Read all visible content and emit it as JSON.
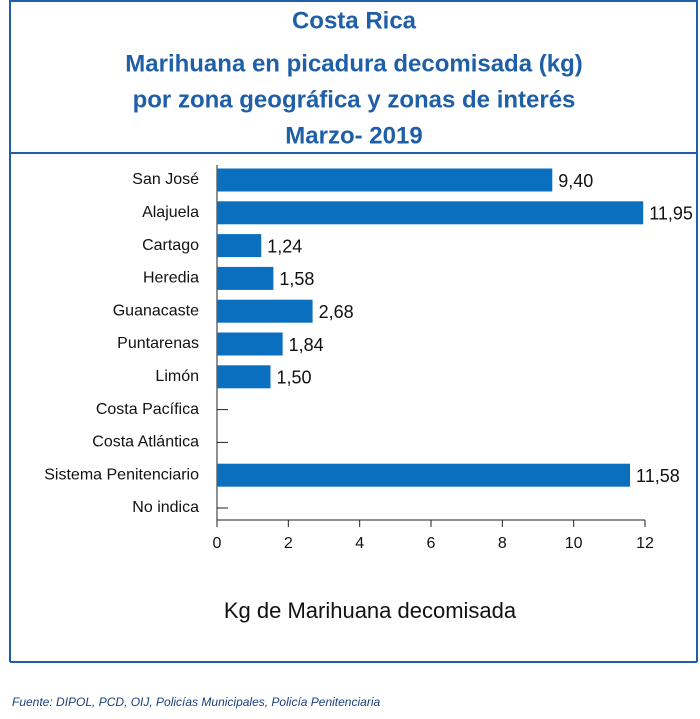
{
  "chart_data": {
    "type": "bar",
    "orientation": "horizontal",
    "title": [
      "Costa Rica",
      "Marihuana en picadura decomisada (kg)",
      "por zona geográfica y zonas de interés",
      "Marzo- 2019"
    ],
    "categories": [
      "San José",
      "Alajuela",
      "Cartago",
      "Heredia",
      "Guanacaste",
      "Puntarenas",
      "Limón",
      "Costa Pacífica",
      "Costa Atlántica",
      "Sistema Penitenciario",
      "No indica"
    ],
    "values": [
      9.4,
      11.95,
      1.24,
      1.58,
      2.68,
      1.84,
      1.5,
      null,
      null,
      11.58,
      null
    ],
    "value_labels": [
      "9,40",
      "11,95",
      "1,24",
      "1,58",
      "2,68",
      "1,84",
      "1,50",
      null,
      null,
      "11,58",
      null
    ],
    "color": "#0b6fc0",
    "xlim": [
      0,
      12
    ],
    "xticks": [
      0,
      2,
      4,
      6,
      8,
      10,
      12
    ],
    "xlabel": "Kg de Marihuana decomisada",
    "source": "Fuente: DIPOL, PCD, OIJ, Policías Municipales, Policía Penitenciaria"
  }
}
